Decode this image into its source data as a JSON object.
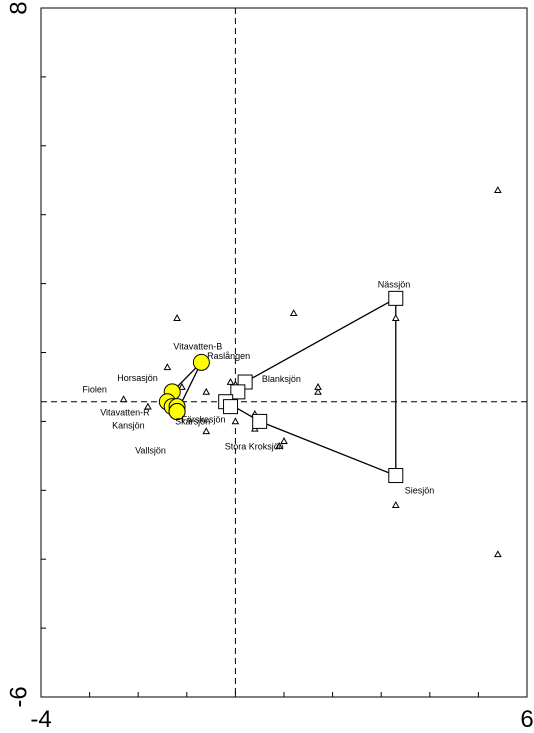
{
  "chart_data": {
    "type": "scatter",
    "title": "",
    "xlabel": "",
    "ylabel": "",
    "xlim": [
      -4,
      6
    ],
    "ylim": [
      -6,
      8
    ],
    "x_tick_labels": [
      {
        "value": -4,
        "text": "-4"
      },
      {
        "value": 6,
        "text": "6"
      }
    ],
    "y_tick_labels": [
      {
        "value": 8,
        "text": "8"
      },
      {
        "value": -6,
        "text": "-6"
      }
    ],
    "y_minor_ticks": [
      6.6,
      5.2,
      3.8,
      2.4,
      1.0,
      -0.4,
      -1.8,
      -3.2,
      -4.6
    ],
    "x_minor_ticks": [
      -3.0,
      -2.0,
      -1.0,
      0.0,
      1.0,
      2.0,
      3.0,
      4.0,
      5.0
    ],
    "reference_lines": {
      "x": 0,
      "y": 0,
      "style": "dashed"
    },
    "species_points": [
      {
        "x": 5.4,
        "y": 4.3
      },
      {
        "x": 3.3,
        "y": 1.7
      },
      {
        "x": 3.3,
        "y": -2.1
      },
      {
        "x": 5.4,
        "y": -3.1
      },
      {
        "x": 1.2,
        "y": 1.8
      },
      {
        "x": -1.2,
        "y": 1.7
      },
      {
        "x": -1.4,
        "y": 0.7
      },
      {
        "x": -1.1,
        "y": 0.3
      },
      {
        "x": -0.6,
        "y": 0.2
      },
      {
        "x": -0.1,
        "y": 0.4
      },
      {
        "x": 0.0,
        "y": 0.35
      },
      {
        "x": -0.1,
        "y": 0.05
      },
      {
        "x": -2.3,
        "y": 0.05
      },
      {
        "x": -1.8,
        "y": -0.1
      },
      {
        "x": -0.6,
        "y": -0.6
      },
      {
        "x": 0.0,
        "y": -0.4
      },
      {
        "x": 0.4,
        "y": -0.55
      },
      {
        "x": 0.4,
        "y": -0.25
      },
      {
        "x": 1.0,
        "y": -0.8
      },
      {
        "x": 0.9,
        "y": -0.9
      },
      {
        "x": 1.7,
        "y": 0.2
      },
      {
        "x": 1.7,
        "y": 0.3
      }
    ],
    "series": [
      {
        "marker": "circle",
        "color": "#ffff00",
        "points": [
          {
            "label": "Vitavatten-B",
            "x": -0.7,
            "y": 0.8
          },
          {
            "label": "Horsasjön",
            "x": -1.3,
            "y": 0.2
          },
          {
            "label": "Fiolen",
            "x": -1.4,
            "y": 0.0
          },
          {
            "label": "Vitavatten-R",
            "x": -1.3,
            "y": -0.1
          },
          {
            "label": "Kansjön",
            "x": -1.2,
            "y": -0.1
          },
          {
            "label": "Vallsjön",
            "x": -1.2,
            "y": -0.2
          },
          {
            "label": "Skärsjön",
            "x": -1.2,
            "y": -0.2
          }
        ]
      },
      {
        "marker": "square",
        "color": "#ffffff",
        "points": [
          {
            "label": "Nässjön",
            "x": 3.3,
            "y": 2.1
          },
          {
            "label": "Raslången",
            "x": 0.2,
            "y": 0.4
          },
          {
            "label": "Blanksjön",
            "x": 0.05,
            "y": 0.2
          },
          {
            "label": "",
            "x": -0.2,
            "y": 0.0
          },
          {
            "label": "Färskesjön",
            "x": -0.1,
            "y": -0.1
          },
          {
            "label": "Stora Kroksjön",
            "x": 0.5,
            "y": -0.4
          },
          {
            "label": "Siesjön",
            "x": 3.3,
            "y": -1.5
          }
        ]
      }
    ],
    "polygons": [
      {
        "name": "",
        "closed": true,
        "points": [
          {
            "x": -0.7,
            "y": 0.8
          },
          {
            "x": -1.2,
            "y": -0.2
          },
          {
            "x": -1.3,
            "y": 0.2
          }
        ]
      },
      {
        "name": "",
        "closed": true,
        "points": [
          {
            "x": 3.3,
            "y": 2.1
          },
          {
            "x": 3.3,
            "y": -1.5
          },
          {
            "x": 0.5,
            "y": -0.4
          },
          {
            "x": -0.2,
            "y": 0.0
          },
          {
            "x": 0.05,
            "y": 0.2
          },
          {
            "x": 0.2,
            "y": 0.4
          }
        ]
      }
    ],
    "grid": false,
    "legend": "none"
  }
}
